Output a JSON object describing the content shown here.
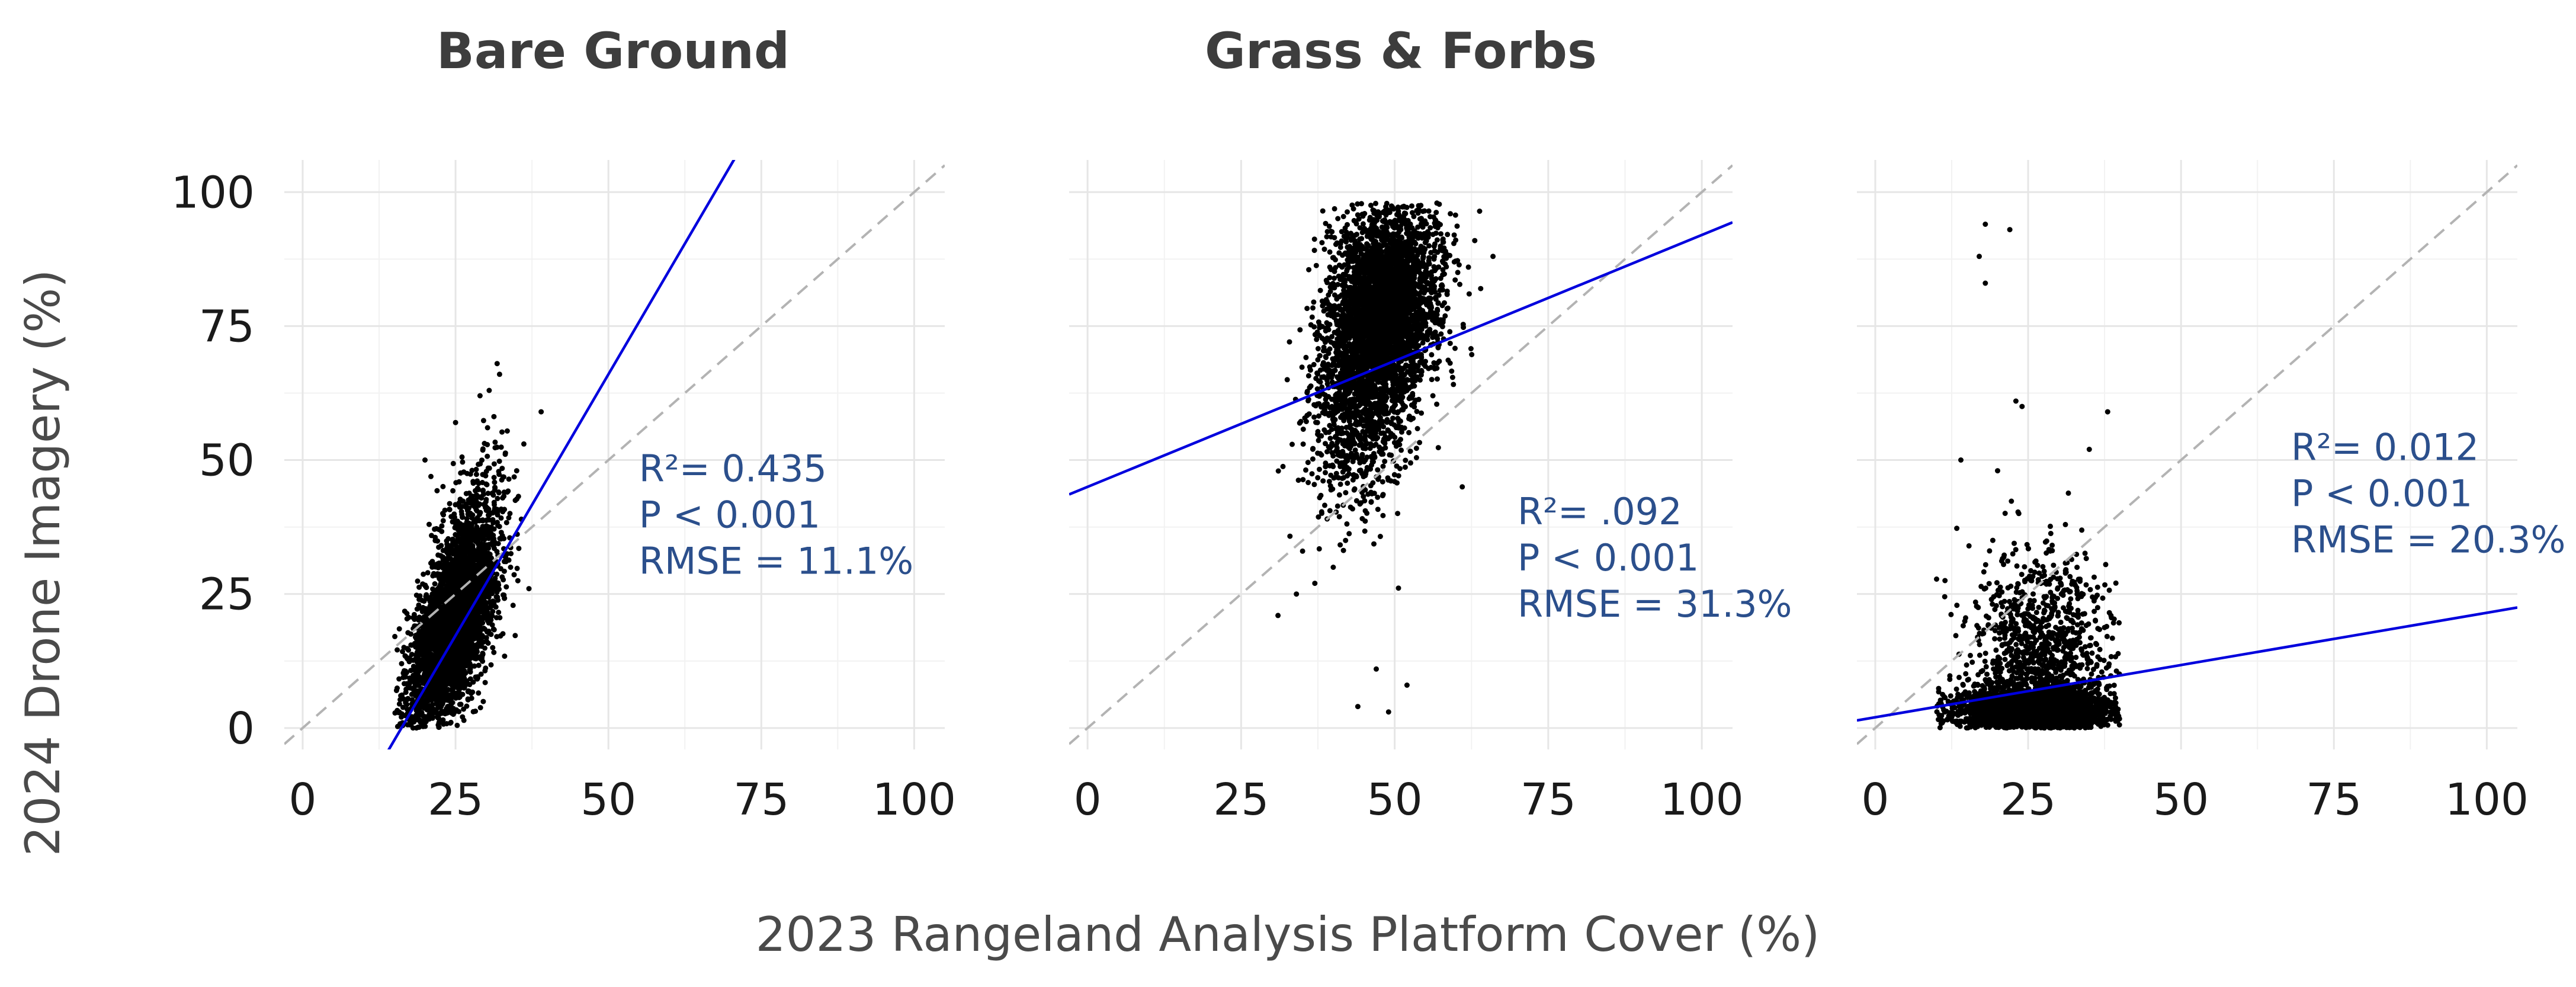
{
  "figure": {
    "xlabel": "2023 Rangeland Analysis Platform Cover (%)",
    "ylabel": "2024 Drone Imagery (%)"
  },
  "chart_data": [
    {
      "type": "scatter",
      "title": "Bare Ground",
      "xlim": [
        -3,
        105
      ],
      "ylim": [
        -4,
        106
      ],
      "xticks": [
        0,
        25,
        50,
        75,
        100
      ],
      "yticks": [
        0,
        25,
        50,
        75,
        100
      ],
      "grid": true,
      "identity_line": true,
      "fit": {
        "slope": 1.95,
        "intercept": -31.5
      },
      "stats": {
        "r2": "R²= 0.435",
        "p": "P < 0.001",
        "rmse": "RMSE = 11.1%"
      },
      "stats_position": {
        "x": 55,
        "y": 46
      },
      "clusters": [
        {
          "cx": 24,
          "cy": 17,
          "sx": 3.6,
          "sy": 9,
          "rho": 0.55,
          "n": 2600
        },
        {
          "cx": 27,
          "cy": 30,
          "sx": 3,
          "sy": 9,
          "rho": 0.4,
          "n": 900
        }
      ],
      "outliers": [
        [
          31.8,
          68
        ],
        [
          32.2,
          66
        ],
        [
          30.5,
          63
        ],
        [
          29,
          62
        ],
        [
          39,
          59
        ],
        [
          25,
          57
        ],
        [
          20,
          50
        ],
        [
          35,
          48
        ],
        [
          37,
          26
        ],
        [
          34,
          30
        ]
      ],
      "clip": {
        "xmin": 15,
        "xmax": 40,
        "ymin": 0,
        "ymax": 70
      }
    },
    {
      "type": "scatter",
      "title": "Grass & Forbs",
      "xlim": [
        -3,
        105
      ],
      "ylim": [
        -4,
        106
      ],
      "xticks": [
        0,
        25,
        50,
        75,
        100
      ],
      "yticks": [
        0,
        25,
        50,
        75,
        100
      ],
      "grid": true,
      "identity_line": true,
      "fit": {
        "slope": 0.47,
        "intercept": 45
      },
      "stats": {
        "r2": "R²= .092",
        "p": "P < 0.001",
        "rmse": "RMSE = 31.3%"
      },
      "stats_position": {
        "x": 70,
        "y": 38
      },
      "clusters": [
        {
          "cx": 48,
          "cy": 78,
          "sx": 4.5,
          "sy": 10,
          "rho": 0.2,
          "n": 3600
        },
        {
          "cx": 44,
          "cy": 58,
          "sx": 4,
          "sy": 9,
          "rho": 0.1,
          "n": 700
        }
      ],
      "outliers": [
        [
          31,
          21
        ],
        [
          34,
          25
        ],
        [
          37,
          27
        ],
        [
          40,
          30
        ],
        [
          42,
          35
        ],
        [
          47,
          11
        ],
        [
          49,
          3
        ],
        [
          52,
          8
        ],
        [
          44,
          4
        ],
        [
          61,
          45
        ],
        [
          66,
          88
        ],
        [
          64,
          82
        ],
        [
          62,
          86
        ],
        [
          35,
          33
        ],
        [
          39,
          39
        ]
      ],
      "clip": {
        "xmin": 30,
        "xmax": 67,
        "ymin": 0,
        "ymax": 98
      }
    },
    {
      "type": "scatter",
      "title": "",
      "xlim": [
        -3,
        105
      ],
      "ylim": [
        -4,
        106
      ],
      "xticks": [
        0,
        25,
        50,
        75,
        100
      ],
      "yticks": [
        0,
        25,
        50,
        75,
        100
      ],
      "grid": true,
      "identity_line": true,
      "fit": {
        "slope": 0.195,
        "intercept": 2
      },
      "stats": {
        "r2": "R²= 0.012",
        "p": "P < 0.001",
        "rmse": "RMSE = 20.3%"
      },
      "stats_position": {
        "x": 68,
        "y": 50
      },
      "clusters": [
        {
          "cx": 26,
          "cy": 3,
          "sx": 7,
          "sy": 2.5,
          "rho": 0,
          "n": 2400
        },
        {
          "cx": 27,
          "cy": 14,
          "sx": 6,
          "sy": 10,
          "rho": 0,
          "n": 1100
        }
      ],
      "outliers": [
        [
          18,
          94
        ],
        [
          22,
          93
        ],
        [
          17,
          88
        ],
        [
          18,
          83
        ],
        [
          23,
          61
        ],
        [
          24,
          60
        ],
        [
          38,
          59
        ],
        [
          14,
          50
        ],
        [
          20,
          48
        ],
        [
          35,
          52
        ]
      ],
      "clip": {
        "xmin": 10,
        "xmax": 40,
        "ymin": 0,
        "ymax": 62
      }
    }
  ]
}
